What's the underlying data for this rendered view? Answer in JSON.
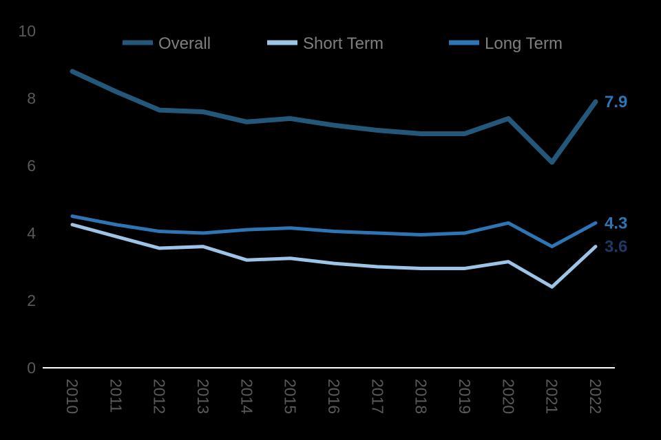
{
  "chart_data": {
    "type": "line",
    "title": "",
    "xlabel": "",
    "ylabel": "",
    "x": [
      2010,
      2011,
      2012,
      2013,
      2014,
      2015,
      2016,
      2017,
      2018,
      2019,
      2020,
      2021,
      2022
    ],
    "series": [
      {
        "name": "Overall",
        "color": "#24587A",
        "stroke_width": 7,
        "values": [
          8.8,
          8.2,
          7.65,
          7.6,
          7.3,
          7.4,
          7.2,
          7.05,
          6.95,
          6.95,
          7.4,
          6.1,
          7.9
        ],
        "end_label": "7.9",
        "end_label_color": "#2E75B6"
      },
      {
        "name": "Short Term",
        "color": "#9DC3E6",
        "stroke_width": 5,
        "values": [
          4.25,
          3.9,
          3.55,
          3.6,
          3.2,
          3.25,
          3.1,
          3.0,
          2.95,
          2.95,
          3.15,
          2.4,
          3.6
        ],
        "end_label": "3.6",
        "end_label_color": "#1F3864"
      },
      {
        "name": "Long Term",
        "color": "#2E75B6",
        "stroke_width": 5,
        "values": [
          4.5,
          4.25,
          4.05,
          4.0,
          4.1,
          4.15,
          4.05,
          4.0,
          3.95,
          4.0,
          4.3,
          3.6,
          4.3
        ],
        "end_label": "4.3",
        "end_label_color": "#2E75B6"
      }
    ],
    "legend": [
      "Overall",
      "Short Term",
      "Long Term"
    ],
    "legend_position": "top",
    "ylim": [
      0,
      10
    ],
    "yticks": [
      0,
      2,
      4,
      6,
      8,
      10
    ],
    "grid": false,
    "background_color": "#000000",
    "axis_line_color": "#FFFFFF",
    "axis_label_color": "#595959",
    "legend_text_color": "#7F7F7F"
  }
}
